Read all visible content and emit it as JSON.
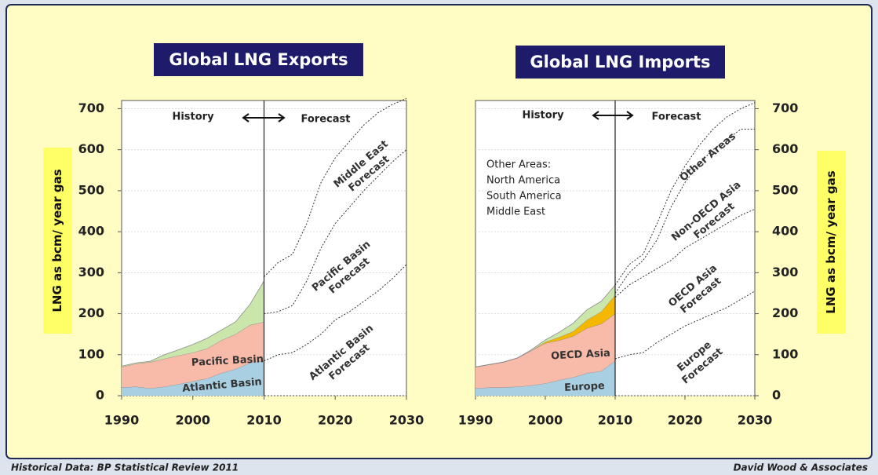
{
  "footer": {
    "left": "Historical Data: BP Statistical Review 2011",
    "right": "David Wood & Associates"
  },
  "chart_data": [
    {
      "type": "stacked_area",
      "title": "Global LNG Exports",
      "y_label": "LNG as bcm/ year gas",
      "y_axis_side": "left",
      "phases": [
        "History",
        "Forecast"
      ],
      "divider": 2010,
      "xlim": [
        1990,
        2030
      ],
      "xticks": [
        1990,
        2000,
        2010,
        2020,
        2030
      ],
      "ylim": [
        0,
        720
      ],
      "yticks": [
        0,
        100,
        200,
        300,
        400,
        500,
        600,
        700
      ],
      "grid": true,
      "x": [
        1990,
        1992,
        1994,
        1996,
        1998,
        2000,
        2002,
        2004,
        2006,
        2008,
        2010
      ],
      "series": [
        {
          "name": "Atlantic Basin",
          "color": "#a9cfe2",
          "values": [
            20,
            22,
            18,
            22,
            28,
            35,
            42,
            55,
            65,
            80,
            85
          ]
        },
        {
          "name": "Pacific Basin",
          "color": "#f9bba9",
          "values": [
            50,
            56,
            64,
            68,
            70,
            70,
            73,
            80,
            85,
            92,
            95
          ]
        },
        {
          "color": "#cbe6aa",
          "values": [
            2,
            2,
            2,
            10,
            14,
            20,
            25,
            25,
            30,
            50,
            100
          ]
        }
      ],
      "forecast": {
        "x": [
          2010,
          2012,
          2014,
          2016,
          2018,
          2020,
          2022,
          2024,
          2026,
          2028,
          2030
        ],
        "series": [
          {
            "label": [
              "Atlantic Basin",
              "Forecast"
            ],
            "values": [
              85,
              100,
              105,
              125,
              150,
              185,
              205,
              230,
              255,
              285,
              320
            ]
          },
          {
            "label": [
              "Pacific Basin",
              "Forecast"
            ],
            "values": [
              115,
              105,
              115,
              155,
              210,
              235,
              255,
              270,
              280,
              285,
              280
            ]
          },
          {
            "label": [
              "Middle East",
              "Forecast"
            ],
            "values": [
              90,
              120,
              125,
              140,
              160,
              160,
              160,
              160,
              155,
              140,
              125
            ]
          }
        ]
      }
    },
    {
      "type": "stacked_area",
      "title": "Global LNG Imports",
      "y_label": "LNG as bcm/ year gas",
      "y_axis_side": "right",
      "phases": [
        "History",
        "Forecast"
      ],
      "divider": 2010,
      "note": [
        "Other Areas:",
        "North America",
        "South America",
        "Middle East"
      ],
      "xlim": [
        1990,
        2030
      ],
      "xticks": [
        1990,
        2000,
        2010,
        2020,
        2030
      ],
      "ylim": [
        0,
        720
      ],
      "yticks": [
        0,
        100,
        200,
        300,
        400,
        500,
        600,
        700
      ],
      "grid": true,
      "x": [
        1990,
        1992,
        1994,
        1996,
        1998,
        2000,
        2002,
        2004,
        2006,
        2008,
        2010
      ],
      "series": [
        {
          "name": "Europe",
          "color": "#a9cfe2",
          "values": [
            18,
            20,
            20,
            22,
            25,
            30,
            38,
            45,
            55,
            60,
            85
          ]
        },
        {
          "name": "OECD Asia",
          "color": "#f9bba9",
          "values": [
            52,
            56,
            62,
            70,
            85,
            98,
            97,
            100,
            110,
            115,
            115
          ]
        },
        {
          "color": "#f5b800",
          "values": [
            0,
            0,
            0,
            0,
            0,
            3,
            8,
            12,
            20,
            30,
            45
          ]
        },
        {
          "color": "#cbe6aa",
          "values": [
            0,
            0,
            0,
            0,
            2,
            5,
            12,
            20,
            25,
            25,
            25
          ]
        }
      ],
      "forecast": {
        "x": [
          2010,
          2012,
          2014,
          2016,
          2018,
          2020,
          2022,
          2024,
          2026,
          2028,
          2030
        ],
        "series": [
          {
            "label": [
              "Europe",
              "Forecast"
            ],
            "values": [
              90,
              100,
              105,
              130,
              150,
              170,
              185,
              200,
              215,
              235,
              255
            ]
          },
          {
            "label": [
              "OECD Asia",
              "Forecast"
            ],
            "values": [
              150,
              170,
              185,
              180,
              180,
              190,
              195,
              200,
              205,
              205,
              200
            ]
          },
          {
            "label": [
              "Non-OECD Asia",
              "Forecast"
            ],
            "values": [
              10,
              30,
              40,
              70,
              130,
              160,
              185,
              200,
              205,
              210,
              195
            ]
          },
          {
            "label": [
              "Other Areas"
            ],
            "values": [
              20,
              20,
              15,
              40,
              40,
              40,
              45,
              50,
              55,
              50,
              65
            ]
          }
        ]
      }
    }
  ]
}
